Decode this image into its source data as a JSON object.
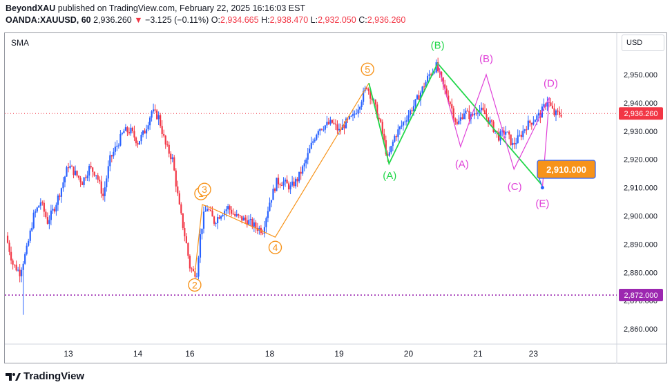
{
  "header": {
    "author": "BeyondXAU",
    "published_text": "published on TradingView.com, February 22, 2025 16:16:03 EST",
    "symbol": "OANDA:XAUUSD, 60",
    "last_price": "2,936.260",
    "change_arrow": "▼",
    "change": "−3.125 (−0.11%)",
    "o_label": "O:",
    "o_value": "2,934.665",
    "h_label": "H:",
    "h_value": "2,938.470",
    "l_label": "L:",
    "l_value": "2,932.050",
    "c_label": "C:",
    "c_value": "2,936.260"
  },
  "indicator_label": "SMA",
  "currency_button": "USD",
  "brand": "TradingView",
  "colors": {
    "up": "#2962ff",
    "down": "#f23645",
    "impulse": "#f7931a",
    "abc": "#22d74a",
    "abcde": "#e040d8",
    "target": "#f7931a"
  },
  "chart_data": {
    "type": "candlestick",
    "title": "",
    "ylim": [
      2855,
      2962
    ],
    "y_ticks": [
      {
        "value": 2950,
        "label": "2,950.000"
      },
      {
        "value": 2940,
        "label": "2,940.000"
      },
      {
        "value": 2930,
        "label": "2,930.000"
      },
      {
        "value": 2920,
        "label": "2,920.000"
      },
      {
        "value": 2910,
        "label": "2,910.000"
      },
      {
        "value": 2900,
        "label": "2,900.000"
      },
      {
        "value": 2890,
        "label": "2,890.000"
      },
      {
        "value": 2880,
        "label": "2,880.000"
      },
      {
        "value": 2870,
        "label": "2,870.000"
      },
      {
        "value": 2860,
        "label": "2,860.000"
      }
    ],
    "x_ticks": [
      {
        "t": 6,
        "label": "13"
      },
      {
        "t": 16,
        "label": "14"
      },
      {
        "t": 23.5,
        "label": "16"
      },
      {
        "t": 35,
        "label": "18"
      },
      {
        "t": 45,
        "label": "19"
      },
      {
        "t": 55,
        "label": "20"
      },
      {
        "t": 65,
        "label": "21"
      },
      {
        "t": 73,
        "label": "23"
      }
    ],
    "x_range": [
      -3,
      85
    ],
    "price_path": [
      [
        -3,
        2893
      ],
      [
        -2,
        2883
      ],
      [
        -1,
        2880
      ],
      [
        0,
        2888
      ],
      [
        1,
        2900
      ],
      [
        2,
        2905
      ],
      [
        3,
        2898
      ],
      [
        4,
        2903
      ],
      [
        5,
        2910
      ],
      [
        6,
        2918
      ],
      [
        7,
        2915
      ],
      [
        8,
        2912
      ],
      [
        9,
        2917
      ],
      [
        10,
        2915
      ],
      [
        11,
        2907
      ],
      [
        12,
        2920
      ],
      [
        13,
        2925
      ],
      [
        14,
        2930
      ],
      [
        15,
        2930
      ],
      [
        16,
        2926
      ],
      [
        17,
        2930
      ],
      [
        18,
        2937
      ],
      [
        19,
        2935
      ],
      [
        20,
        2925
      ],
      [
        21,
        2920
      ],
      [
        22,
        2903
      ],
      [
        23,
        2890
      ],
      [
        23.5,
        2882
      ],
      [
        24,
        2880
      ],
      [
        24.5,
        2880
      ],
      [
        25,
        2893
      ],
      [
        25.5,
        2900
      ],
      [
        26,
        2903
      ],
      [
        27,
        2898
      ],
      [
        28,
        2901
      ],
      [
        29,
        2903
      ],
      [
        30,
        2900
      ],
      [
        31,
        2899
      ],
      [
        32,
        2898
      ],
      [
        33,
        2896
      ],
      [
        34,
        2895
      ],
      [
        35,
        2905
      ],
      [
        36,
        2912
      ],
      [
        37,
        2912
      ],
      [
        38,
        2910
      ],
      [
        39,
        2913
      ],
      [
        40,
        2918
      ],
      [
        41,
        2925
      ],
      [
        42,
        2931
      ],
      [
        43,
        2932
      ],
      [
        44,
        2933
      ],
      [
        45,
        2930
      ],
      [
        46,
        2933
      ],
      [
        47,
        2935
      ],
      [
        48,
        2940
      ],
      [
        49,
        2946
      ],
      [
        50,
        2940
      ],
      [
        51,
        2932
      ],
      [
        52,
        2920
      ],
      [
        53,
        2928
      ],
      [
        54,
        2932
      ],
      [
        55,
        2936
      ],
      [
        56,
        2940
      ],
      [
        57,
        2945
      ],
      [
        58,
        2950
      ],
      [
        59,
        2953
      ],
      [
        60,
        2946
      ],
      [
        61,
        2940
      ],
      [
        62,
        2932
      ],
      [
        63,
        2937
      ],
      [
        64,
        2935
      ],
      [
        65,
        2938
      ],
      [
        66,
        2936
      ],
      [
        67,
        2932
      ],
      [
        68,
        2928
      ],
      [
        69,
        2930
      ],
      [
        70,
        2925
      ],
      [
        71,
        2928
      ],
      [
        72,
        2932
      ],
      [
        73,
        2934
      ],
      [
        74,
        2936
      ],
      [
        75,
        2941
      ],
      [
        76,
        2936
      ],
      [
        77,
        2936.26
      ]
    ],
    "wick_extremes": [
      {
        "t": -0.5,
        "low": 2865
      },
      {
        "t": 24.3,
        "low": 2877
      }
    ],
    "horizontal_levels": [
      {
        "value": 2872,
        "label": "2,872.000",
        "color": "#9c27b0"
      },
      {
        "value": 2936.26,
        "label": "2,936.260",
        "color": "#f23645"
      }
    ],
    "waves": {
      "impulse": {
        "points": [
          {
            "label": "2",
            "t": 24.2,
            "v": 2879
          },
          {
            "label": "1",
            "t": 25.3,
            "v": 2904
          },
          {
            "label": "3",
            "t": 26.4,
            "v": 2903
          },
          {
            "label": "4",
            "t": 35.8,
            "v": 2892.5
          },
          {
            "label": "5",
            "t": 49.3,
            "v": 2947
          }
        ],
        "path": [
          [
            24.2,
            2879
          ],
          [
            25.3,
            2904
          ],
          [
            26.4,
            2903
          ],
          [
            35.8,
            2892.5
          ],
          [
            49.3,
            2947
          ]
        ]
      },
      "abc": {
        "points": [
          {
            "label": "(A)",
            "t": 52.2,
            "v": 2918.5
          },
          {
            "label": "(B)",
            "t": 59.2,
            "v": 2954
          }
        ],
        "path": [
          [
            49.3,
            2947
          ],
          [
            52.2,
            2918.5
          ],
          [
            59.2,
            2954
          ],
          [
            74.2,
            2911
          ]
        ]
      },
      "abcde": {
        "points": [
          {
            "label": "(A)",
            "t": 62.5,
            "v": 2924.5
          },
          {
            "label": "(B)",
            "t": 66.2,
            "v": 2950
          },
          {
            "label": "(C)",
            "t": 70.2,
            "v": 2916.5
          },
          {
            "label": "(D)",
            "t": 75.3,
            "v": 2942
          },
          {
            "label": "(E)",
            "t": 74.3,
            "v": 2910
          }
        ],
        "path": [
          [
            59.2,
            2954
          ],
          [
            62.5,
            2924.5
          ],
          [
            66.2,
            2950
          ],
          [
            70.2,
            2916.5
          ],
          [
            75.3,
            2942
          ],
          [
            74.3,
            2910
          ]
        ]
      }
    },
    "target": {
      "value": 2910,
      "label": "2,910.000",
      "t": 74.3
    }
  }
}
